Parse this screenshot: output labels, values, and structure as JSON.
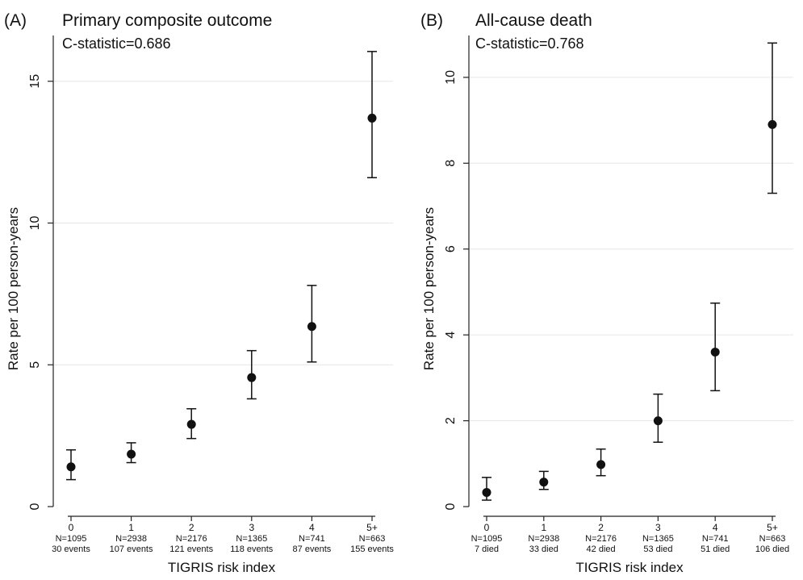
{
  "chart_data": [
    {
      "type": "scatter",
      "panel_label": "(A)",
      "title": "Primary composite outcome",
      "subtitle": "C-statistic=0.686",
      "xlabel": "TIGRIS risk index",
      "ylabel": "Rate per 100 person-years",
      "ylim": [
        0,
        16.5
      ],
      "yticks": [
        0,
        5,
        10,
        15
      ],
      "grid": true,
      "categories": [
        "0",
        "1",
        "2",
        "3",
        "4",
        "5+"
      ],
      "n_labels": [
        "N=1095",
        "N=2938",
        "N=2176",
        "N=1365",
        "N=741",
        "N=663"
      ],
      "count_labels": [
        "30 events",
        "107 events",
        "121 events",
        "118 events",
        "87 events",
        "155 events"
      ],
      "points": [
        {
          "x": "0",
          "y": 1.4,
          "lower": 0.95,
          "upper": 2.0
        },
        {
          "x": "1",
          "y": 1.85,
          "lower": 1.55,
          "upper": 2.25
        },
        {
          "x": "2",
          "y": 2.9,
          "lower": 2.4,
          "upper": 3.45
        },
        {
          "x": "3",
          "y": 4.55,
          "lower": 3.8,
          "upper": 5.5
        },
        {
          "x": "4",
          "y": 6.35,
          "lower": 5.1,
          "upper": 7.8
        },
        {
          "x": "5+",
          "y": 13.7,
          "lower": 11.6,
          "upper": 16.05
        }
      ]
    },
    {
      "type": "scatter",
      "panel_label": "(B)",
      "title": "All-cause death",
      "subtitle": "C-statistic=0.768",
      "xlabel": "TIGRIS risk index",
      "ylabel": "Rate per 100 person-years",
      "ylim": [
        0,
        10.9
      ],
      "yticks": [
        0,
        2,
        4,
        6,
        8,
        10
      ],
      "grid": true,
      "categories": [
        "0",
        "1",
        "2",
        "3",
        "4",
        "5+"
      ],
      "n_labels": [
        "N=1095",
        "N=2938",
        "N=2176",
        "N=1365",
        "N=741",
        "N=663"
      ],
      "count_labels": [
        "7 died",
        "33 died",
        "42 died",
        "53 died",
        "51 died",
        "106 died"
      ],
      "points": [
        {
          "x": "0",
          "y": 0.33,
          "lower": 0.15,
          "upper": 0.68
        },
        {
          "x": "1",
          "y": 0.57,
          "lower": 0.4,
          "upper": 0.82
        },
        {
          "x": "2",
          "y": 0.98,
          "lower": 0.72,
          "upper": 1.34
        },
        {
          "x": "3",
          "y": 2.0,
          "lower": 1.5,
          "upper": 2.62
        },
        {
          "x": "4",
          "y": 3.6,
          "lower": 2.7,
          "upper": 4.74
        },
        {
          "x": "5+",
          "y": 8.9,
          "lower": 7.3,
          "upper": 10.8
        }
      ]
    }
  ],
  "colors": {
    "marker": "#111111",
    "axis": "#222222",
    "grid": "#e6e6e6",
    "background": "#ffffff"
  }
}
